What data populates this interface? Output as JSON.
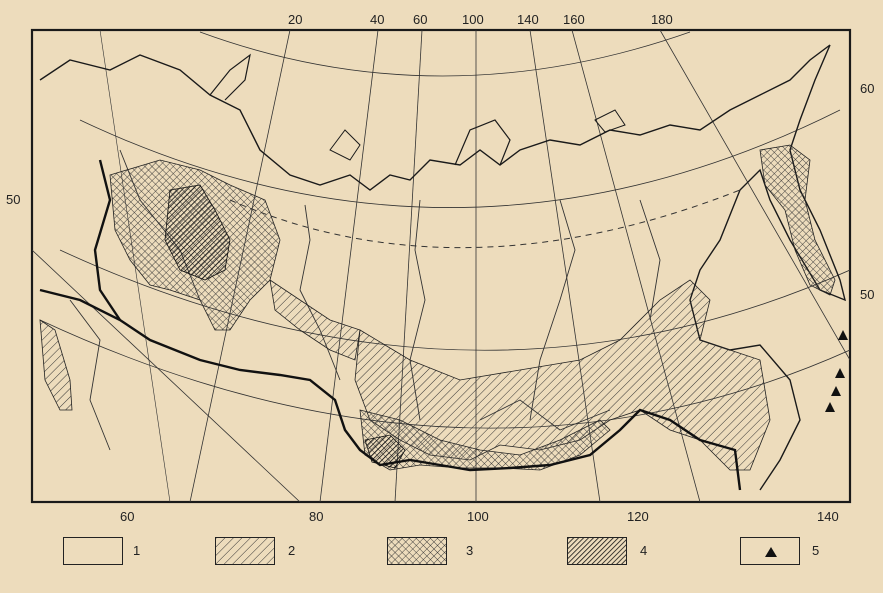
{
  "map": {
    "top_longitudes": [
      "20",
      "40",
      "60",
      "100",
      "140",
      "160",
      "180"
    ],
    "bottom_longitudes": [
      "60",
      "80",
      "100",
      "120",
      "140"
    ],
    "left_latitude": "50",
    "right_latitudes": [
      "60",
      "50"
    ]
  },
  "legend": [
    {
      "number": "1",
      "pattern": "blank"
    },
    {
      "number": "2",
      "pattern": "light-hatch"
    },
    {
      "number": "3",
      "pattern": "crosshatch"
    },
    {
      "number": "4",
      "pattern": "dense-hatch"
    },
    {
      "number": "5",
      "pattern": "triangle"
    }
  ],
  "colors": {
    "background": "#eddcbc",
    "ink": "#222222",
    "frame": "#1a1a1a"
  }
}
